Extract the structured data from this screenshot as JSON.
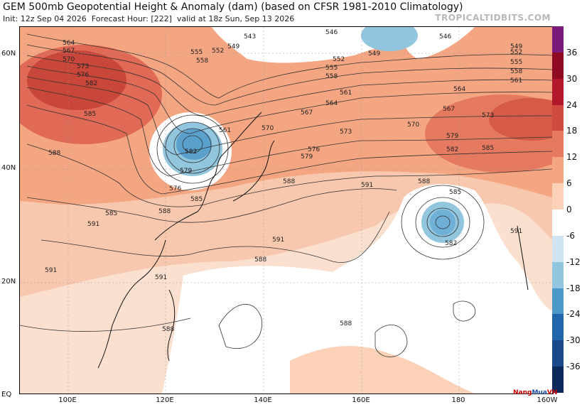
{
  "title": "GEM 500mb Geopotential Height & Anomaly (dam) (based on CFSR 1981-2010 Climatology)",
  "subtitle": {
    "init": "Init: 12z Sep 04 2026",
    "forecast_hour": "Forecast Hour: [222]",
    "valid": "valid at 18z Sun, Sep 13 2026"
  },
  "brand": "TROPICALTIDBITS.COM",
  "logo_text": {
    "part1": "Nang",
    "part2": "Mua",
    "part3": "VN"
  },
  "lat_labels": [
    "60N",
    "40N",
    "20N",
    "EQ"
  ],
  "lon_labels": [
    "100E",
    "120E",
    "140E",
    "160E",
    "180",
    "160W"
  ],
  "colorbar": {
    "ticks": [
      "36",
      "30",
      "24",
      "18",
      "12",
      "6",
      "0",
      "-6",
      "-12",
      "-18",
      "-24",
      "-30",
      "-36"
    ],
    "colors": [
      "#7b1a7a",
      "#8e0a22",
      "#b2182b",
      "#cf4b3d",
      "#e57a60",
      "#f4a582",
      "#fbd2b8",
      "#ffffff",
      "#cfe3f0",
      "#92c5de",
      "#4c98c8",
      "#2166ac",
      "#1b4a8a",
      "#0b2a5c"
    ]
  },
  "contour_labels": [
    "543",
    "546",
    "546",
    "549",
    "549",
    "549",
    "552",
    "552",
    "552",
    "555",
    "555",
    "555",
    "558",
    "558",
    "558",
    "561",
    "561",
    "561",
    "564",
    "564",
    "564",
    "567",
    "567",
    "567",
    "570",
    "570",
    "570",
    "573",
    "573",
    "573",
    "576",
    "576",
    "576",
    "579",
    "579",
    "579",
    "582",
    "582",
    "582",
    "582",
    "585",
    "585",
    "585",
    "585",
    "585",
    "588",
    "588",
    "588",
    "588",
    "588",
    "588",
    "588",
    "591",
    "591",
    "591",
    "591",
    "591",
    "591"
  ]
}
